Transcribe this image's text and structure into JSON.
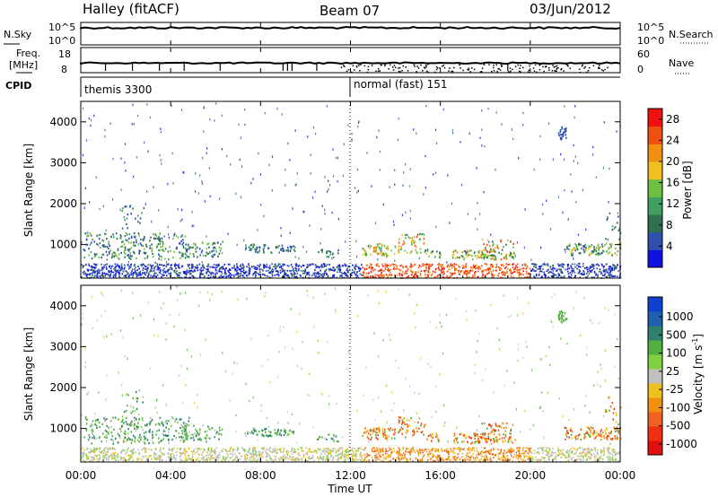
{
  "header": {
    "station": "Halley (fitACF)",
    "beam": "Beam 07",
    "date": "03/Jun/2012"
  },
  "strips": {
    "nsky_label": "N.Sky",
    "nsky_ticks": [
      "10^5",
      "10^0"
    ],
    "nsearch_label": "N.Search",
    "nsearch_ticks": [
      "10^5",
      "10^0"
    ],
    "freq_label": "Freq.",
    "freq_unit": "[MHz]",
    "freq_ticks": [
      "18",
      "8"
    ],
    "nave_label": "Nave",
    "nave_ticks": [
      "60",
      "0"
    ],
    "cpid_label": "CPID",
    "cpid_segments": [
      {
        "name": "themis 3300",
        "start_hour": 0
      },
      {
        "name": "normal (fast) 151",
        "start_hour": 12
      }
    ]
  },
  "colors": {
    "power": [
      "#1010e0",
      "#3050b0",
      "#307050",
      "#40a060",
      "#70c040",
      "#f0c020",
      "#f09010",
      "#f05010",
      "#f01010"
    ],
    "velocity": [
      "#1040d0",
      "#2060b0",
      "#308070",
      "#50b040",
      "#80d040",
      "#c0c0c0",
      "#f0c020",
      "#f09010",
      "#f06020",
      "#f03010",
      "#e01010"
    ]
  },
  "chart_data": [
    {
      "type": "heatmap",
      "name": "power",
      "ylabel": "Slant Range [km]",
      "yticks": [
        1000,
        2000,
        3000,
        4000
      ],
      "ylim": [
        180,
        4500
      ],
      "xlim": [
        0,
        24
      ],
      "colorbar_label": "Power [dB]",
      "colorbar_ticks": [
        "4",
        "8",
        "12",
        "16",
        "20",
        "24",
        "28"
      ],
      "colorbar_range": [
        0,
        30
      ]
    },
    {
      "type": "heatmap",
      "name": "velocity",
      "ylabel": "Slant Range [km]",
      "yticks": [
        1000,
        2000,
        3000,
        4000
      ],
      "ylim": [
        180,
        4500
      ],
      "xlim": [
        0,
        24
      ],
      "colorbar_label": "Velocity [m s",
      "colorbar_label_sup": "-1",
      "colorbar_label_end": "]",
      "colorbar_ticks": [
        "1000",
        "500",
        "100",
        "25",
        "-25",
        "-100",
        "-500",
        "-1000"
      ]
    }
  ],
  "xaxis": {
    "label": "Time UT",
    "ticks": [
      "00:00",
      "04:00",
      "08:00",
      "12:00",
      "16:00",
      "20:00",
      "00:00"
    ]
  }
}
